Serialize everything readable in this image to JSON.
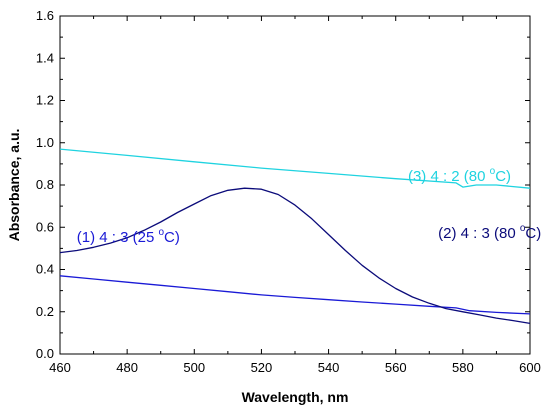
{
  "chart_data": {
    "type": "line",
    "xlabel": "Wavelength, nm",
    "ylabel": "Absorbance, a.u.",
    "xlim": [
      460,
      600
    ],
    "ylim": [
      0.0,
      1.6
    ],
    "xticks": [
      460,
      480,
      500,
      520,
      540,
      560,
      580,
      600
    ],
    "xtick_labels": [
      "460",
      "480",
      "500",
      "520",
      "540",
      "560",
      "580",
      "600"
    ],
    "yticks": [
      0.0,
      0.2,
      0.4,
      0.6,
      0.8,
      1.0,
      1.2,
      1.4,
      1.6
    ],
    "ytick_labels": [
      "0.0",
      "0.2",
      "0.4",
      "0.6",
      "0.8",
      "1.0",
      "1.2",
      "1.4",
      "1.6"
    ],
    "grid": false,
    "series": [
      {
        "name": "(1) 4 : 3 (25 °C)",
        "color": "#1a1ad6",
        "x": [
          460,
          470,
          480,
          490,
          500,
          510,
          520,
          530,
          540,
          550,
          560,
          570,
          578,
          582,
          590,
          600
        ],
        "y": [
          0.37,
          0.355,
          0.34,
          0.325,
          0.31,
          0.295,
          0.28,
          0.268,
          0.257,
          0.246,
          0.236,
          0.226,
          0.218,
          0.205,
          0.197,
          0.19
        ]
      },
      {
        "name": "(2) 4 : 3 (80 °C)",
        "color": "#0b0b7a",
        "x": [
          460,
          465,
          470,
          475,
          480,
          485,
          490,
          495,
          500,
          505,
          510,
          515,
          520,
          525,
          530,
          535,
          540,
          545,
          550,
          555,
          560,
          565,
          570,
          575,
          580,
          585,
          590,
          595,
          600
        ],
        "y": [
          0.48,
          0.49,
          0.505,
          0.525,
          0.55,
          0.585,
          0.625,
          0.67,
          0.71,
          0.75,
          0.775,
          0.785,
          0.78,
          0.755,
          0.705,
          0.64,
          0.565,
          0.49,
          0.42,
          0.36,
          0.31,
          0.27,
          0.24,
          0.215,
          0.2,
          0.185,
          0.17,
          0.158,
          0.145
        ]
      },
      {
        "name": "(3) 4 : 2 (80 °C)",
        "color": "#1fd3e0",
        "x": [
          460,
          480,
          500,
          520,
          540,
          560,
          578,
          580,
          584,
          590,
          600
        ],
        "y": [
          0.97,
          0.94,
          0.91,
          0.88,
          0.855,
          0.83,
          0.81,
          0.79,
          0.8,
          0.8,
          0.785
        ]
      }
    ],
    "annotations": [
      {
        "series": 2,
        "text": "(3) 4 : 2 (80 ",
        "sup": "o",
        "tail": "C)",
        "x": 579,
        "y": 0.82,
        "anchor": "middle"
      },
      {
        "series": 1,
        "text": "(2) 4 : 3 (80 ",
        "sup": "o",
        "tail": "C)",
        "x": 588,
        "y": 0.55,
        "anchor": "middle"
      },
      {
        "series": 0,
        "text": "(1) 4 : 3 (25 ",
        "sup": "o",
        "tail": "C)",
        "x": 465,
        "y": 0.53,
        "anchor": "start"
      }
    ]
  }
}
